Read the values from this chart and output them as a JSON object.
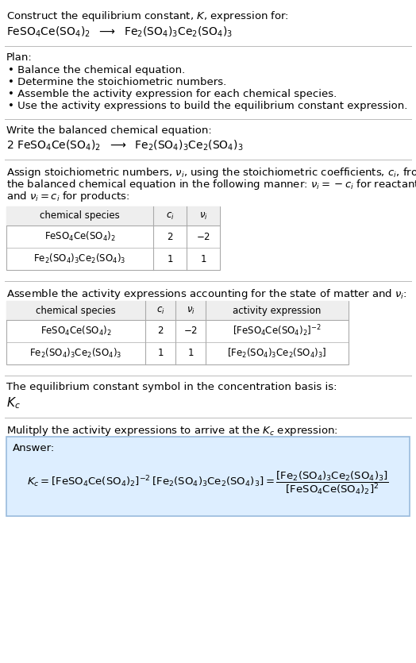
{
  "title_line1": "Construct the equilibrium constant, $K$, expression for:",
  "title_line2_a": "$\\mathrm{FeSO_4Ce(SO_4)_2}$",
  "title_line2_arrow": "  $\\longrightarrow$  ",
  "title_line2_b": "$\\mathrm{Fe_2(SO_4)_3Ce_2(SO_4)_3}$",
  "plan_header": "Plan:",
  "plan_items": [
    "• Balance the chemical equation.",
    "• Determine the stoichiometric numbers.",
    "• Assemble the activity expression for each chemical species.",
    "• Use the activity expressions to build the equilibrium constant expression."
  ],
  "balanced_header": "Write the balanced chemical equation:",
  "balanced_eq_a": "$2\\ \\mathrm{FeSO_4Ce(SO_4)_2}$",
  "balanced_eq_arrow": "  $\\longrightarrow$  ",
  "balanced_eq_b": "$\\mathrm{Fe_2(SO_4)_3Ce_2(SO_4)_3}$",
  "stoich_header_lines": [
    "Assign stoichiometric numbers, $\\nu_i$, using the stoichiometric coefficients, $c_i$, from",
    "the balanced chemical equation in the following manner: $\\nu_i = -c_i$ for reactants",
    "and $\\nu_i = c_i$ for products:"
  ],
  "table1_headers": [
    "chemical species",
    "$c_i$",
    "$\\nu_i$"
  ],
  "table1_rows": [
    [
      "$\\mathrm{FeSO_4Ce(SO_4)_2}$",
      "2",
      "$-2$"
    ],
    [
      "$\\mathrm{Fe_2(SO_4)_3Ce_2(SO_4)_3}$",
      "1",
      "1"
    ]
  ],
  "activity_header": "Assemble the activity expressions accounting for the state of matter and $\\nu_i$:",
  "table2_headers": [
    "chemical species",
    "$c_i$",
    "$\\nu_i$",
    "activity expression"
  ],
  "table2_rows": [
    [
      "$\\mathrm{FeSO_4Ce(SO_4)_2}$",
      "2",
      "$-2$",
      "$[\\mathrm{FeSO_4Ce(SO_4)_2}]^{-2}$"
    ],
    [
      "$\\mathrm{Fe_2(SO_4)_3Ce_2(SO_4)_3}$",
      "1",
      "1",
      "$[\\mathrm{Fe_2(SO_4)_3Ce_2(SO_4)_3}]$"
    ]
  ],
  "kc_header": "The equilibrium constant symbol in the concentration basis is:",
  "kc_symbol": "$K_c$",
  "multiply_header": "Mulitply the activity expressions to arrive at the $K_c$ expression:",
  "answer_label": "Answer:",
  "answer_line1": "$K_c = [\\mathrm{FeSO_4Ce(SO_4)_2}]^{-2}\\,[\\mathrm{Fe_2(SO_4)_3Ce_2(SO_4)_3}] = \\dfrac{[\\mathrm{Fe_2(SO_4)_3Ce_2(SO_4)_3}]}{[\\mathrm{FeSO_4Ce(SO_4)_2}]^2}$",
  "bg_color": "#ffffff",
  "text_color": "#000000",
  "header_bg": "#eeeeee",
  "answer_box_bg": "#ddeeff",
  "answer_box_border": "#99bbdd",
  "sep_color": "#bbbbbb",
  "fs": 9.5
}
